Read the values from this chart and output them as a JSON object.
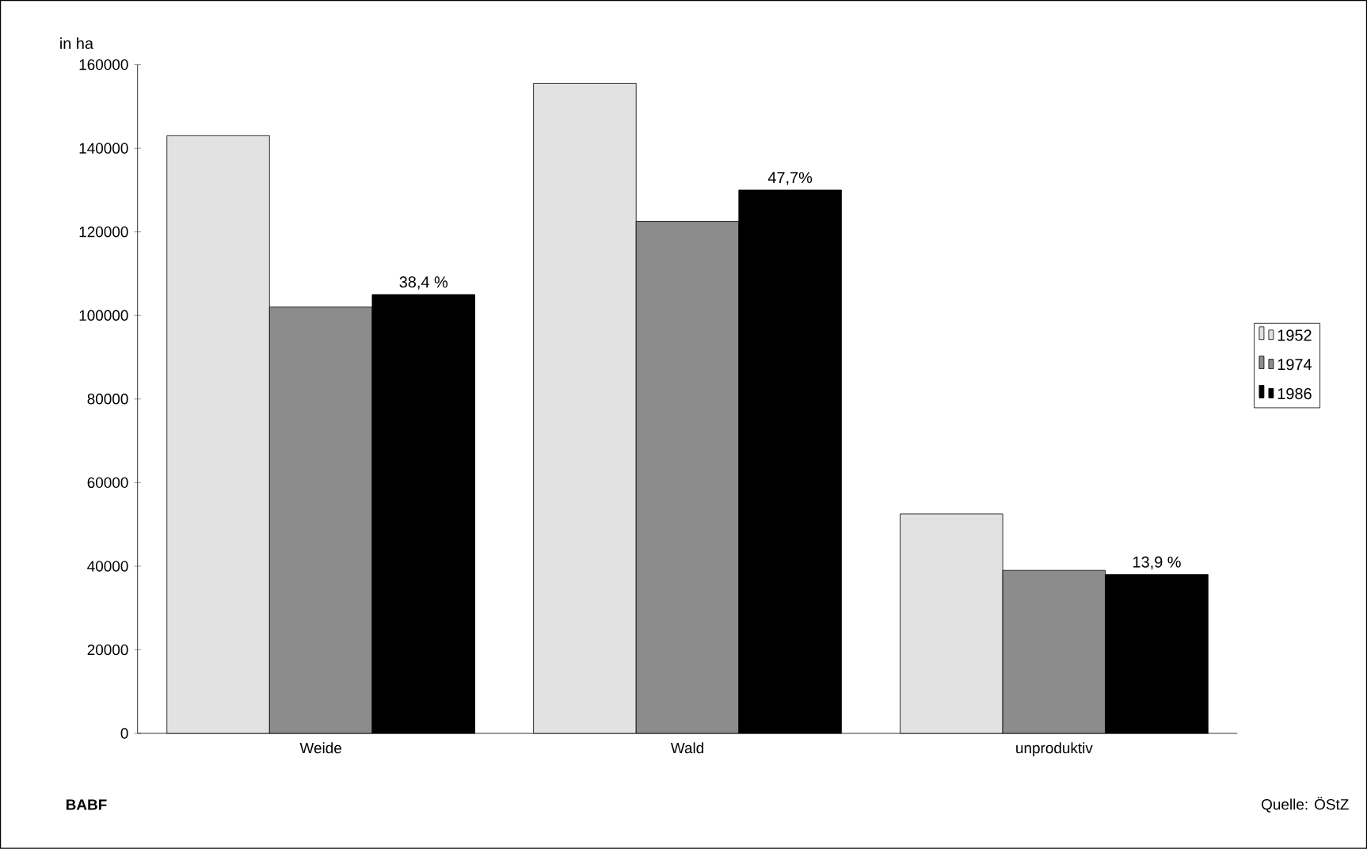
{
  "chart_data": {
    "type": "bar",
    "ylabel": "in ha",
    "categories": [
      "Weide",
      "Wald",
      "unproduktiv"
    ],
    "series": [
      {
        "name": "1952",
        "color": "#e2e2e2",
        "values": [
          143000,
          155500,
          52500
        ]
      },
      {
        "name": "1974",
        "color": "#8c8c8c",
        "values": [
          102000,
          122500,
          39000
        ]
      },
      {
        "name": "1986",
        "color": "#000000",
        "values": [
          105000,
          130000,
          38000
        ]
      }
    ],
    "ylim": [
      0,
      160000
    ],
    "yticks": [
      0,
      20000,
      40000,
      60000,
      80000,
      100000,
      120000,
      140000,
      160000
    ],
    "legend": "right",
    "grid": false,
    "annotations": [
      "38,4 %",
      "47,7%",
      "13,9 %",
      "BABF",
      "Quelle: ÖStZ"
    ]
  }
}
